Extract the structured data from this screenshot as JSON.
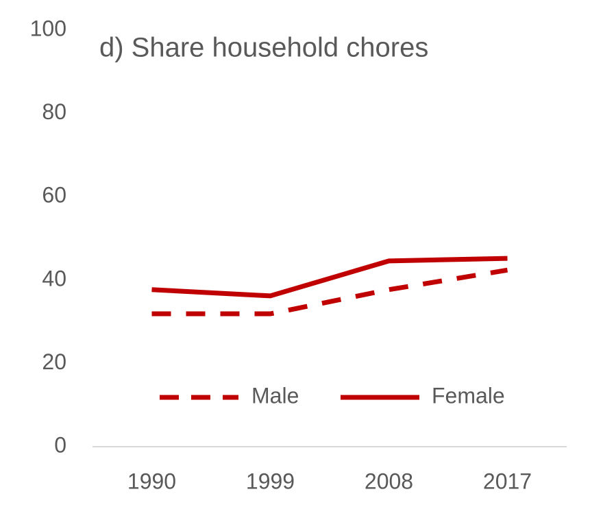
{
  "chart_data": {
    "type": "line",
    "title": "d) Share household chores",
    "categories": [
      "1990",
      "1999",
      "2008",
      "2017"
    ],
    "series": [
      {
        "name": "Male",
        "color": "#c00000",
        "linestyle": "dashed",
        "values": [
          31.9,
          31.9,
          37.7,
          42.4
        ]
      },
      {
        "name": "Female",
        "color": "#c00000",
        "linestyle": "solid",
        "values": [
          37.7,
          36.2,
          44.6,
          45.2
        ]
      }
    ],
    "ylim": [
      0,
      100
    ],
    "yticks": [
      0,
      20,
      40,
      60,
      80,
      100
    ],
    "grid": false,
    "legend": "bottom"
  }
}
